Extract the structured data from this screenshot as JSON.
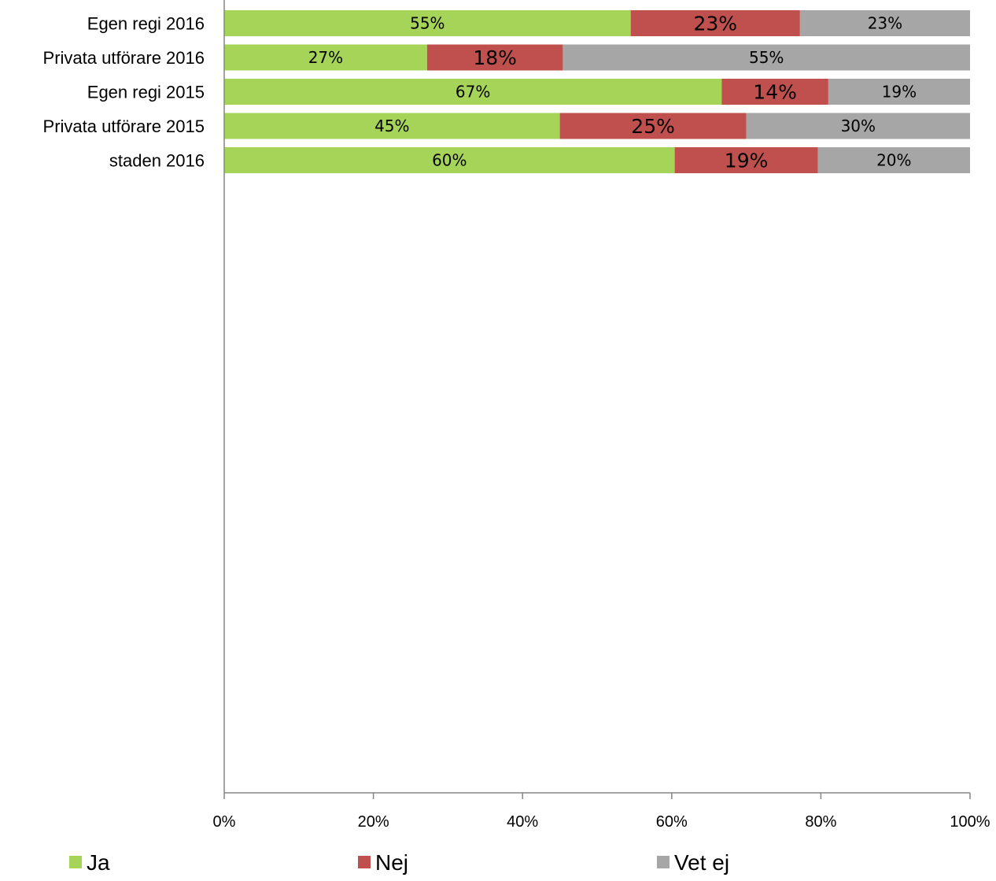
{
  "chart_data": {
    "type": "bar",
    "orientation": "horizontal",
    "stacked": true,
    "categories": [
      "Egen regi 2016",
      "Privata utförare 2016",
      "Egen regi 2015",
      "Privata utförare 2015",
      "staden 2016"
    ],
    "series": [
      {
        "name": "Ja",
        "color": "#A6D459",
        "values": [
          54.5,
          27.2,
          66.7,
          45.0,
          60.4
        ],
        "labels": [
          "55%",
          "27%",
          "67%",
          "45%",
          "60%"
        ]
      },
      {
        "name": "Nej",
        "color": "#C0504D",
        "values": [
          22.7,
          18.2,
          14.3,
          25.0,
          19.2
        ],
        "labels": [
          "23%",
          "18%",
          "14%",
          "25%",
          "19%"
        ]
      },
      {
        "name": "Vet ej",
        "color": "#A6A6A6",
        "values": [
          22.8,
          54.6,
          19.0,
          30.0,
          20.4
        ],
        "labels": [
          "23%",
          "55%",
          "19%",
          "30%",
          "20%"
        ]
      }
    ],
    "xlim": [
      0,
      100
    ],
    "x_ticks": [
      "0%",
      "20%",
      "40%",
      "60%",
      "80%",
      "100%"
    ],
    "grid": false,
    "legend_position": "bottom"
  }
}
